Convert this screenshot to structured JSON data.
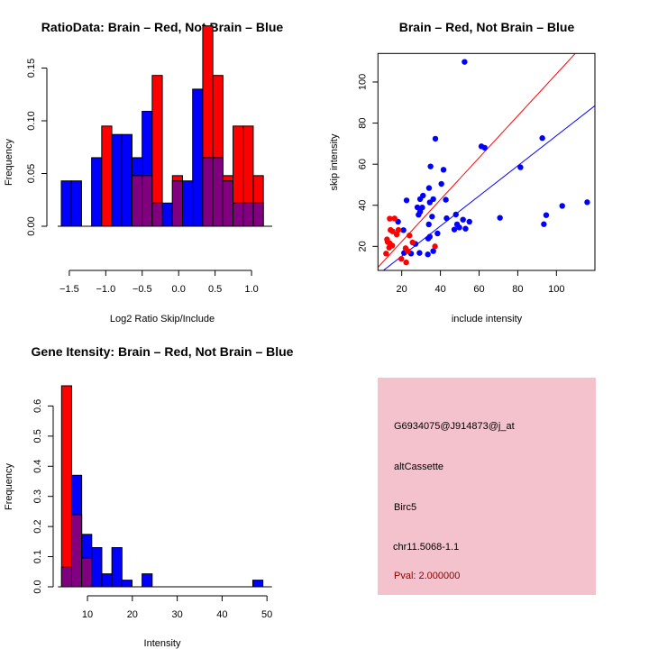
{
  "colors": {
    "red": "#ff0000",
    "blue": "#0000ff",
    "overlap": "#800080",
    "panel_bg": "#f4c2cc",
    "pval_text": "#8b0000"
  },
  "chart_data": [
    {
      "type": "bar",
      "title": "RatioData: Brain – Red, Not Brain – Blue",
      "xlabel": "Log2 Ratio Skip/Include",
      "ylabel": "Frequency",
      "xlim": [
        -1.61,
        1.16
      ],
      "ylim": [
        0,
        0.19
      ],
      "xticks": [
        -1.5,
        -1.0,
        -0.5,
        0.0,
        0.5,
        1.0
      ],
      "xtick_labels": [
        "−1.5",
        "−1.0",
        "−0.5",
        "0.0",
        "0.5",
        "1.0"
      ],
      "yticks": [
        0,
        0.05,
        0.1,
        0.15
      ],
      "ytick_labels": [
        "0.00",
        "0.05",
        "0.10",
        "0.15"
      ],
      "bin_start": -1.61,
      "bin_width": 0.1386,
      "series": [
        {
          "name": "Brain",
          "color": "red",
          "values": [
            0,
            0,
            0,
            0,
            0.095,
            0,
            0,
            0.048,
            0.048,
            0.143,
            0,
            0.048,
            0,
            0,
            0.19,
            0.143,
            0.048,
            0.095,
            0.095,
            0.048
          ]
        },
        {
          "name": "Not Brain",
          "color": "blue",
          "values": [
            0.043,
            0.043,
            0,
            0.065,
            0,
            0.087,
            0.087,
            0.065,
            0.109,
            0.022,
            0.022,
            0.043,
            0.043,
            0.13,
            0.065,
            0.065,
            0.043,
            0.022,
            0.022,
            0.022
          ]
        }
      ]
    },
    {
      "type": "scatter",
      "title": "Brain – Red, Not Brain – Blue",
      "xlabel": "include intensity",
      "ylabel": "skip intensity",
      "xlim": [
        7.7,
        119.9
      ],
      "ylim": [
        8.3,
        113.9
      ],
      "xticks": [
        20,
        40,
        60,
        80,
        100
      ],
      "xtick_labels": [
        "20",
        "40",
        "60",
        "80",
        "100"
      ],
      "yticks": [
        20,
        40,
        60,
        80,
        100
      ],
      "ytick_labels": [
        "20",
        "40",
        "60",
        "80",
        "100"
      ],
      "series": [
        {
          "name": "Not Brain",
          "color": "blue",
          "points": [
            [
              52.5,
              109.8
            ],
            [
              37.4,
              72.4
            ],
            [
              61.2,
              68.7
            ],
            [
              62.9,
              68.0
            ],
            [
              92.7,
              72.7
            ],
            [
              81.4,
              58.5
            ],
            [
              34.9,
              58.9
            ],
            [
              41.6,
              57.3
            ],
            [
              40.5,
              50.4
            ],
            [
              34.1,
              48.4
            ],
            [
              31.0,
              44.7
            ],
            [
              29.5,
              43.0
            ],
            [
              36.3,
              43.0
            ],
            [
              42.8,
              42.7
            ],
            [
              22.5,
              42.4
            ],
            [
              34.5,
              41.4
            ],
            [
              28.1,
              39.0
            ],
            [
              30.6,
              38.9
            ],
            [
              29.5,
              36.8
            ],
            [
              28.7,
              35.4
            ],
            [
              35.7,
              34.5
            ],
            [
              43.2,
              33.7
            ],
            [
              48.0,
              35.5
            ],
            [
              70.8,
              33.9
            ],
            [
              51.7,
              33.0
            ],
            [
              55.0,
              32.0
            ],
            [
              34.0,
              30.7
            ],
            [
              48.6,
              30.7
            ],
            [
              49.8,
              29.2
            ],
            [
              53.0,
              28.6
            ],
            [
              47.2,
              28.2
            ],
            [
              18.1,
              32.0
            ],
            [
              20.9,
              27.9
            ],
            [
              38.5,
              26.3
            ],
            [
              34.5,
              24.7
            ],
            [
              33.7,
              23.8
            ],
            [
              27.1,
              21.2
            ],
            [
              21.2,
              16.8
            ],
            [
              24.8,
              16.5
            ],
            [
              29.2,
              16.8
            ],
            [
              36.3,
              17.7
            ],
            [
              33.5,
              16.1
            ],
            [
              93.5,
              30.8
            ],
            [
              94.7,
              35.2
            ],
            [
              103.0,
              39.7
            ],
            [
              115.9,
              41.5
            ]
          ],
          "fit": {
            "slope": 0.733,
            "intercept": 0.57
          }
        },
        {
          "name": "Brain",
          "color": "red",
          "points": [
            [
              11.9,
              16.5
            ],
            [
              12.4,
              23.4
            ],
            [
              13.8,
              33.5
            ],
            [
              16.3,
              33.6
            ],
            [
              14.2,
              28.0
            ],
            [
              15.3,
              27.3
            ],
            [
              18.3,
              28.0
            ],
            [
              17.4,
              25.8
            ],
            [
              12.7,
              22.2
            ],
            [
              13.8,
              21.5
            ],
            [
              15.1,
              20.4
            ],
            [
              13.5,
              19.4
            ],
            [
              24.0,
              25.3
            ],
            [
              25.6,
              21.9
            ],
            [
              22.0,
              19.1
            ],
            [
              23.1,
              17.7
            ],
            [
              19.8,
              13.9
            ],
            [
              22.3,
              12.2
            ],
            [
              37.2,
              20.0
            ]
          ],
          "fit": {
            "slope": 1.02,
            "intercept": 1.95
          }
        }
      ]
    },
    {
      "type": "bar",
      "title": "Gene Itensity: Brain – Red, Not Brain – Blue",
      "xlabel": "Intensity",
      "ylabel": "Frequency",
      "xlim": [
        4.23,
        49.1
      ],
      "ylim": [
        0,
        0.667
      ],
      "xticks": [
        10,
        20,
        30,
        40,
        50
      ],
      "xtick_labels": [
        "10",
        "20",
        "30",
        "40",
        "50"
      ],
      "yticks": [
        0,
        0.1,
        0.2,
        0.3,
        0.4,
        0.5,
        0.6
      ],
      "ytick_labels": [
        "0.0",
        "0.1",
        "0.2",
        "0.3",
        "0.4",
        "0.5",
        "0.6"
      ],
      "bin_start": 4.23,
      "bin_width": 2.243,
      "series": [
        {
          "name": "Brain",
          "color": "red",
          "values": [
            0.667,
            0.239,
            0.095,
            0,
            0,
            0,
            0,
            0,
            0,
            0,
            0,
            0,
            0,
            0,
            0,
            0,
            0,
            0,
            0,
            0
          ]
        },
        {
          "name": "Not Brain",
          "color": "blue",
          "values": [
            0.065,
            0.37,
            0.174,
            0.13,
            0.043,
            0.13,
            0.022,
            0,
            0.043,
            0,
            0,
            0,
            0,
            0,
            0,
            0,
            0,
            0,
            0,
            0.022
          ]
        }
      ]
    }
  ],
  "info_panel": {
    "probe_id": "G6934075@J914873@j_at",
    "event_type": "altCassette",
    "gene": "Birc5",
    "location": "chr11.5068-1.1",
    "pval": "Pval: 2.000000"
  }
}
